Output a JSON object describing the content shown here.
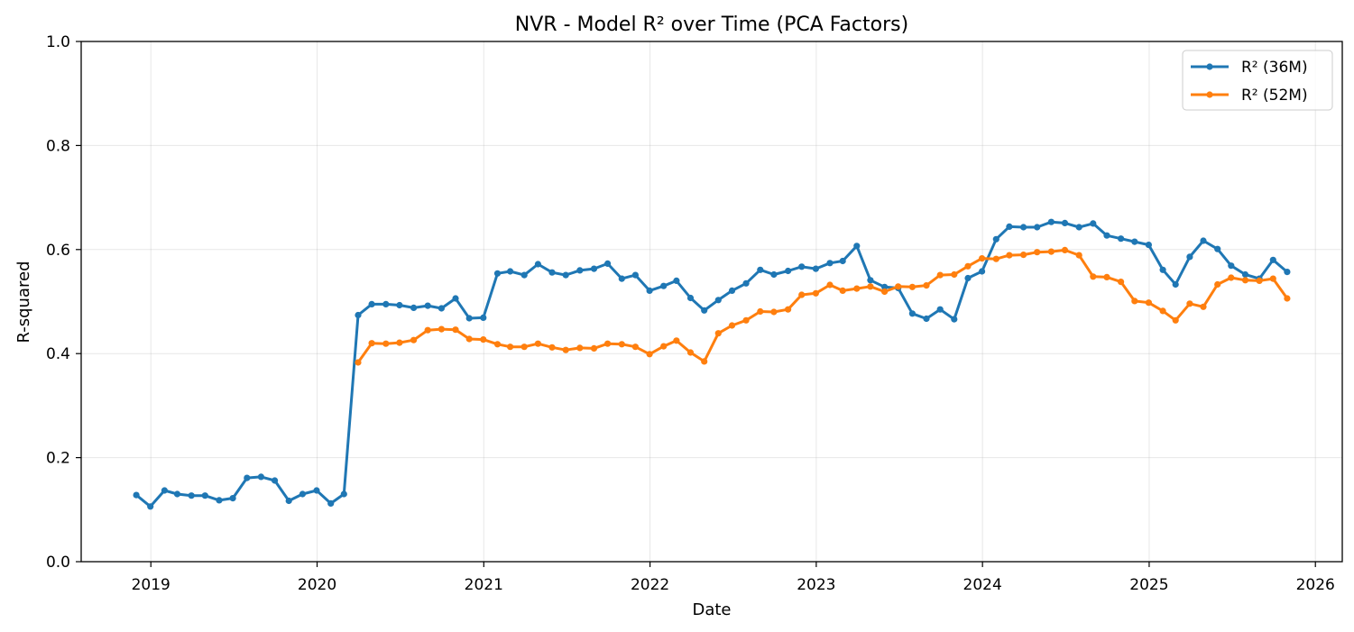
{
  "chart_data": {
    "type": "line",
    "title": "NVR - Model R² over Time (PCA Factors)",
    "xlabel": "Date",
    "ylabel": "R-squared",
    "x_ticks": [
      "2019",
      "2020",
      "2021",
      "2022",
      "2023",
      "2024",
      "2025",
      "2026"
    ],
    "y_ticks": [
      "0.0",
      "0.2",
      "0.4",
      "0.6",
      "0.8",
      "1.0"
    ],
    "xlim": [
      "2018-08-01",
      "2026-03-01"
    ],
    "ylim": [
      0,
      1
    ],
    "grid": true,
    "legend_position": "top-right",
    "series": [
      {
        "name": "R² (36M)",
        "color": "#1f77b4",
        "marker": "circle",
        "points": [
          [
            "2018-11-30",
            0.128
          ],
          [
            "2018-12-31",
            0.106
          ],
          [
            "2019-01-31",
            0.137
          ],
          [
            "2019-02-28",
            0.13
          ],
          [
            "2019-03-31",
            0.127
          ],
          [
            "2019-04-30",
            0.127
          ],
          [
            "2019-05-31",
            0.118
          ],
          [
            "2019-06-30",
            0.122
          ],
          [
            "2019-07-31",
            0.161
          ],
          [
            "2019-08-31",
            0.163
          ],
          [
            "2019-09-30",
            0.156
          ],
          [
            "2019-10-31",
            0.117
          ],
          [
            "2019-11-30",
            0.13
          ],
          [
            "2019-12-31",
            0.137
          ],
          [
            "2020-01-31",
            0.112
          ],
          [
            "2020-02-29",
            0.13
          ],
          [
            "2020-03-31",
            0.474
          ],
          [
            "2020-04-30",
            0.495
          ],
          [
            "2020-05-31",
            0.495
          ],
          [
            "2020-06-30",
            0.493
          ],
          [
            "2020-07-31",
            0.488
          ],
          [
            "2020-08-31",
            0.492
          ],
          [
            "2020-09-30",
            0.487
          ],
          [
            "2020-10-31",
            0.506
          ],
          [
            "2020-11-30",
            0.468
          ],
          [
            "2020-12-31",
            0.469
          ],
          [
            "2021-01-31",
            0.554
          ],
          [
            "2021-02-28",
            0.558
          ],
          [
            "2021-03-31",
            0.551
          ],
          [
            "2021-04-30",
            0.572
          ],
          [
            "2021-05-31",
            0.556
          ],
          [
            "2021-06-30",
            0.551
          ],
          [
            "2021-07-31",
            0.56
          ],
          [
            "2021-08-31",
            0.563
          ],
          [
            "2021-09-30",
            0.573
          ],
          [
            "2021-10-31",
            0.544
          ],
          [
            "2021-11-30",
            0.551
          ],
          [
            "2021-12-31",
            0.521
          ],
          [
            "2022-01-31",
            0.53
          ],
          [
            "2022-02-28",
            0.54
          ],
          [
            "2022-03-31",
            0.507
          ],
          [
            "2022-04-30",
            0.483
          ],
          [
            "2022-05-31",
            0.503
          ],
          [
            "2022-06-30",
            0.521
          ],
          [
            "2022-07-31",
            0.535
          ],
          [
            "2022-08-31",
            0.561
          ],
          [
            "2022-09-30",
            0.552
          ],
          [
            "2022-10-31",
            0.559
          ],
          [
            "2022-11-30",
            0.567
          ],
          [
            "2022-12-31",
            0.563
          ],
          [
            "2023-01-31",
            0.574
          ],
          [
            "2023-02-28",
            0.578
          ],
          [
            "2023-03-31",
            0.607
          ],
          [
            "2023-04-30",
            0.541
          ],
          [
            "2023-05-31",
            0.528
          ],
          [
            "2023-06-30",
            0.526
          ],
          [
            "2023-07-31",
            0.477
          ],
          [
            "2023-08-31",
            0.467
          ],
          [
            "2023-09-30",
            0.485
          ],
          [
            "2023-10-31",
            0.466
          ],
          [
            "2023-11-30",
            0.545
          ],
          [
            "2023-12-31",
            0.558
          ],
          [
            "2024-01-31",
            0.62
          ],
          [
            "2024-02-29",
            0.644
          ],
          [
            "2024-03-31",
            0.643
          ],
          [
            "2024-04-30",
            0.643
          ],
          [
            "2024-05-31",
            0.653
          ],
          [
            "2024-06-30",
            0.651
          ],
          [
            "2024-07-31",
            0.643
          ],
          [
            "2024-08-31",
            0.65
          ],
          [
            "2024-09-30",
            0.627
          ],
          [
            "2024-10-31",
            0.621
          ],
          [
            "2024-11-30",
            0.615
          ],
          [
            "2024-12-31",
            0.609
          ],
          [
            "2025-01-31",
            0.561
          ],
          [
            "2025-02-28",
            0.533
          ],
          [
            "2025-03-31",
            0.586
          ],
          [
            "2025-04-30",
            0.617
          ],
          [
            "2025-05-31",
            0.601
          ],
          [
            "2025-06-30",
            0.569
          ],
          [
            "2025-07-31",
            0.552
          ],
          [
            "2025-08-31",
            0.544
          ],
          [
            "2025-09-30",
            0.58
          ],
          [
            "2025-10-31",
            0.557
          ]
        ]
      },
      {
        "name": "R² (52M)",
        "color": "#ff7f0e",
        "marker": "circle",
        "points": [
          [
            "2020-03-31",
            0.383
          ],
          [
            "2020-04-30",
            0.42
          ],
          [
            "2020-05-31",
            0.419
          ],
          [
            "2020-06-30",
            0.421
          ],
          [
            "2020-07-31",
            0.426
          ],
          [
            "2020-08-31",
            0.445
          ],
          [
            "2020-09-30",
            0.447
          ],
          [
            "2020-10-31",
            0.446
          ],
          [
            "2020-11-30",
            0.428
          ],
          [
            "2020-12-31",
            0.427
          ],
          [
            "2021-01-31",
            0.418
          ],
          [
            "2021-02-28",
            0.413
          ],
          [
            "2021-03-31",
            0.413
          ],
          [
            "2021-04-30",
            0.419
          ],
          [
            "2021-05-31",
            0.412
          ],
          [
            "2021-06-30",
            0.407
          ],
          [
            "2021-07-31",
            0.411
          ],
          [
            "2021-08-31",
            0.41
          ],
          [
            "2021-09-30",
            0.419
          ],
          [
            "2021-10-31",
            0.418
          ],
          [
            "2021-11-30",
            0.413
          ],
          [
            "2021-12-31",
            0.399
          ],
          [
            "2022-01-31",
            0.414
          ],
          [
            "2022-02-28",
            0.425
          ],
          [
            "2022-03-31",
            0.402
          ],
          [
            "2022-04-30",
            0.385
          ],
          [
            "2022-05-31",
            0.439
          ],
          [
            "2022-06-30",
            0.454
          ],
          [
            "2022-07-31",
            0.464
          ],
          [
            "2022-08-31",
            0.481
          ],
          [
            "2022-09-30",
            0.48
          ],
          [
            "2022-10-31",
            0.485
          ],
          [
            "2022-11-30",
            0.513
          ],
          [
            "2022-12-31",
            0.516
          ],
          [
            "2023-01-31",
            0.532
          ],
          [
            "2023-02-28",
            0.521
          ],
          [
            "2023-03-31",
            0.525
          ],
          [
            "2023-04-30",
            0.529
          ],
          [
            "2023-05-31",
            0.519
          ],
          [
            "2023-06-30",
            0.529
          ],
          [
            "2023-07-31",
            0.528
          ],
          [
            "2023-08-31",
            0.531
          ],
          [
            "2023-09-30",
            0.551
          ],
          [
            "2023-10-31",
            0.552
          ],
          [
            "2023-11-30",
            0.568
          ],
          [
            "2023-12-31",
            0.583
          ],
          [
            "2024-01-31",
            0.582
          ],
          [
            "2024-02-29",
            0.589
          ],
          [
            "2024-03-31",
            0.59
          ],
          [
            "2024-04-30",
            0.595
          ],
          [
            "2024-05-31",
            0.596
          ],
          [
            "2024-06-30",
            0.599
          ],
          [
            "2024-07-31",
            0.589
          ],
          [
            "2024-08-31",
            0.548
          ],
          [
            "2024-09-30",
            0.547
          ],
          [
            "2024-10-31",
            0.538
          ],
          [
            "2024-11-30",
            0.501
          ],
          [
            "2024-12-31",
            0.498
          ],
          [
            "2025-01-31",
            0.482
          ],
          [
            "2025-02-28",
            0.464
          ],
          [
            "2025-03-31",
            0.496
          ],
          [
            "2025-04-30",
            0.49
          ],
          [
            "2025-05-31",
            0.533
          ],
          [
            "2025-06-30",
            0.546
          ],
          [
            "2025-07-31",
            0.541
          ],
          [
            "2025-08-31",
            0.54
          ],
          [
            "2025-09-30",
            0.544
          ],
          [
            "2025-10-31",
            0.506
          ]
        ]
      }
    ]
  }
}
